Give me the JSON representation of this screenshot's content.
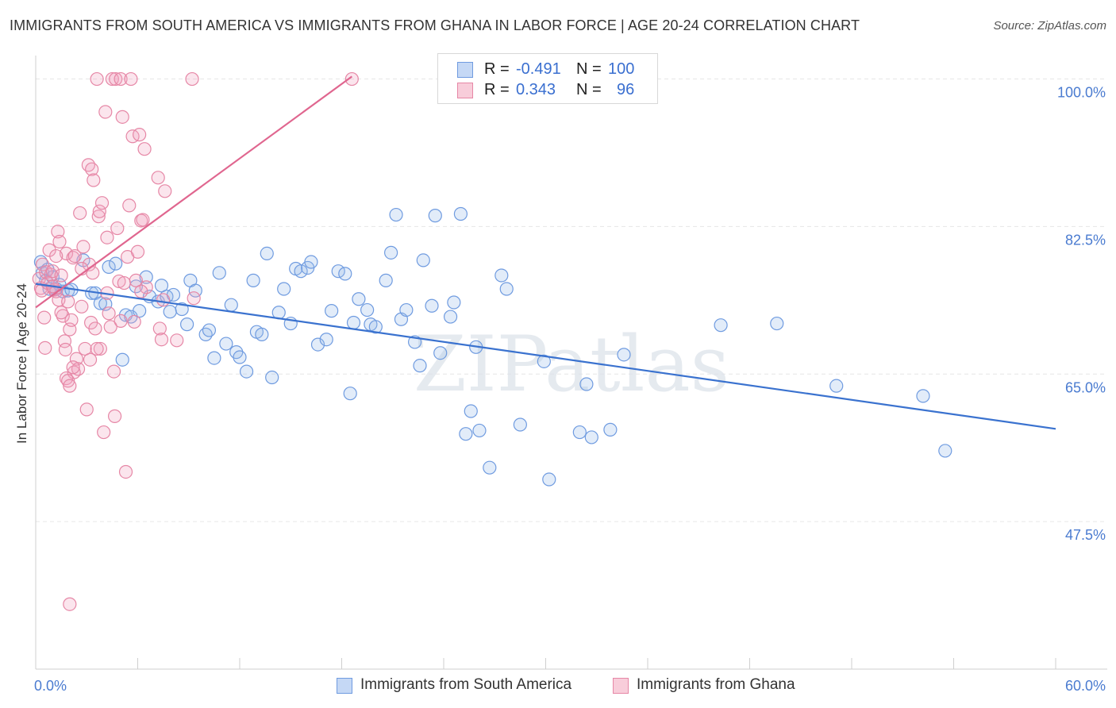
{
  "title": "IMMIGRANTS FROM SOUTH AMERICA VS IMMIGRANTS FROM GHANA IN LABOR FORCE | AGE 20-24 CORRELATION CHART",
  "source": "Source: ZipAtlas.com",
  "watermark": "ZIPatlas",
  "legend": {
    "r_label": "R =",
    "n_label": "N =",
    "rows": [
      {
        "r": "-0.491",
        "n": "100",
        "color": "#6f9be0"
      },
      {
        "r": "0.343",
        "n": "96",
        "color": "#e687a6"
      }
    ]
  },
  "bottom_legend": [
    "Immigrants from South America",
    "Immigrants from Ghana"
  ],
  "chart_data": {
    "type": "scatter",
    "title": "IMMIGRANTS FROM SOUTH AMERICA VS IMMIGRANTS FROM GHANA IN LABOR FORCE | AGE 20-24 CORRELATION CHART",
    "xlabel": "",
    "ylabel": "In Labor Force | Age 20-24",
    "xlim": [
      0,
      60
    ],
    "ylim": [
      30,
      102.5
    ],
    "x_tick_labels": [
      "0.0%",
      "60.0%"
    ],
    "y_ticks": [
      47.5,
      65.0,
      82.5,
      100.0
    ],
    "y_tick_labels": [
      "47.5%",
      "65.0%",
      "82.5%",
      "100.0%"
    ],
    "grid": true,
    "legend_position": "top-center",
    "series": [
      {
        "name": "Immigrants from South America",
        "color": "#6f9be0",
        "trend": {
          "x": [
            0,
            60
          ],
          "y": [
            75.7,
            58.5
          ]
        },
        "points": [
          [
            0.3,
            78.3
          ],
          [
            0.4,
            77.0
          ],
          [
            0.6,
            76.1
          ],
          [
            0.7,
            77.4
          ],
          [
            0.8,
            75.1
          ],
          [
            1.0,
            76.5
          ],
          [
            1.2,
            75.1
          ],
          [
            1.4,
            75.6
          ],
          [
            1.6,
            74.8
          ],
          [
            1.9,
            74.9
          ],
          [
            2.1,
            75.0
          ],
          [
            2.8,
            78.5
          ],
          [
            3.3,
            74.6
          ],
          [
            3.5,
            74.6
          ],
          [
            3.8,
            73.4
          ],
          [
            4.1,
            73.3
          ],
          [
            4.3,
            77.7
          ],
          [
            4.7,
            78.1
          ],
          [
            5.1,
            66.7
          ],
          [
            5.3,
            72.0
          ],
          [
            5.6,
            71.8
          ],
          [
            5.9,
            75.4
          ],
          [
            6.1,
            72.5
          ],
          [
            6.5,
            76.5
          ],
          [
            6.7,
            74.2
          ],
          [
            7.2,
            73.6
          ],
          [
            7.4,
            75.5
          ],
          [
            7.7,
            74.2
          ],
          [
            7.9,
            72.4
          ],
          [
            8.1,
            74.4
          ],
          [
            8.6,
            72.7
          ],
          [
            8.9,
            70.9
          ],
          [
            9.1,
            76.1
          ],
          [
            9.4,
            74.9
          ],
          [
            10.0,
            69.7
          ],
          [
            10.2,
            70.2
          ],
          [
            10.5,
            66.9
          ],
          [
            10.8,
            77.0
          ],
          [
            11.2,
            68.6
          ],
          [
            11.5,
            73.2
          ],
          [
            11.8,
            67.6
          ],
          [
            12.0,
            67.0
          ],
          [
            12.4,
            65.3
          ],
          [
            12.8,
            76.1
          ],
          [
            13.0,
            70.0
          ],
          [
            13.3,
            69.7
          ],
          [
            13.6,
            79.3
          ],
          [
            13.9,
            64.6
          ],
          [
            14.3,
            72.3
          ],
          [
            14.6,
            75.1
          ],
          [
            15.0,
            71.0
          ],
          [
            15.3,
            77.5
          ],
          [
            15.6,
            77.2
          ],
          [
            16.0,
            77.6
          ],
          [
            16.2,
            78.3
          ],
          [
            16.6,
            68.5
          ],
          [
            17.1,
            69.1
          ],
          [
            17.4,
            72.5
          ],
          [
            17.8,
            77.2
          ],
          [
            18.2,
            76.9
          ],
          [
            18.5,
            62.7
          ],
          [
            18.7,
            71.1
          ],
          [
            19.0,
            73.9
          ],
          [
            19.5,
            72.6
          ],
          [
            19.7,
            70.9
          ],
          [
            20.0,
            70.6
          ],
          [
            20.6,
            76.1
          ],
          [
            20.9,
            79.4
          ],
          [
            21.2,
            83.9
          ],
          [
            21.5,
            71.5
          ],
          [
            21.8,
            72.6
          ],
          [
            22.3,
            68.8
          ],
          [
            22.6,
            66.0
          ],
          [
            22.8,
            78.5
          ],
          [
            23.3,
            73.1
          ],
          [
            23.5,
            83.8
          ],
          [
            23.8,
            67.5
          ],
          [
            24.4,
            71.8
          ],
          [
            24.6,
            73.5
          ],
          [
            25.0,
            84.0
          ],
          [
            25.3,
            57.9
          ],
          [
            25.6,
            60.6
          ],
          [
            25.9,
            68.2
          ],
          [
            26.1,
            58.3
          ],
          [
            26.7,
            53.9
          ],
          [
            27.4,
            76.7
          ],
          [
            27.7,
            75.1
          ],
          [
            28.5,
            59.0
          ],
          [
            29.9,
            66.5
          ],
          [
            30.2,
            52.5
          ],
          [
            32.0,
            58.1
          ],
          [
            32.4,
            63.8
          ],
          [
            32.7,
            57.5
          ],
          [
            33.8,
            58.4
          ],
          [
            34.6,
            67.3
          ],
          [
            40.3,
            70.8
          ],
          [
            43.6,
            71.0
          ],
          [
            47.1,
            63.6
          ],
          [
            52.2,
            62.4
          ],
          [
            53.5,
            55.9
          ]
        ]
      },
      {
        "name": "Immigrants from Ghana",
        "color": "#e687a6",
        "trend": {
          "x": [
            0,
            18.6
          ],
          "y": [
            72.9,
            100.3
          ]
        },
        "points": [
          [
            0.2,
            76.3
          ],
          [
            0.3,
            75.2
          ],
          [
            0.35,
            74.9
          ],
          [
            0.4,
            78.0
          ],
          [
            0.5,
            71.7
          ],
          [
            0.55,
            68.1
          ],
          [
            0.6,
            77.1
          ],
          [
            0.7,
            75.8
          ],
          [
            0.8,
            79.7
          ],
          [
            0.9,
            76.8
          ],
          [
            1.0,
            77.2
          ],
          [
            1.1,
            75.0
          ],
          [
            1.2,
            74.8
          ],
          [
            1.3,
            81.9
          ],
          [
            1.35,
            73.8
          ],
          [
            1.4,
            80.7
          ],
          [
            1.5,
            76.7
          ],
          [
            1.6,
            71.9
          ],
          [
            1.7,
            68.9
          ],
          [
            1.75,
            67.9
          ],
          [
            1.8,
            79.3
          ],
          [
            1.9,
            73.6
          ],
          [
            2.0,
            70.3
          ],
          [
            2.1,
            71.4
          ],
          [
            2.2,
            78.8
          ],
          [
            2.25,
            65.2
          ],
          [
            2.3,
            79.0
          ],
          [
            2.4,
            66.8
          ],
          [
            2.5,
            65.6
          ],
          [
            2.6,
            84.1
          ],
          [
            2.7,
            73.0
          ],
          [
            2.8,
            80.1
          ],
          [
            2.9,
            68.0
          ],
          [
            3.0,
            60.8
          ],
          [
            3.1,
            89.8
          ],
          [
            3.15,
            78.0
          ],
          [
            3.2,
            66.7
          ],
          [
            3.25,
            71.1
          ],
          [
            3.3,
            89.3
          ],
          [
            3.35,
            77.0
          ],
          [
            3.4,
            88.0
          ],
          [
            3.5,
            70.4
          ],
          [
            3.6,
            100.0
          ],
          [
            3.7,
            83.7
          ],
          [
            3.75,
            84.3
          ],
          [
            3.8,
            68.0
          ],
          [
            3.9,
            85.3
          ],
          [
            4.0,
            58.1
          ],
          [
            4.1,
            96.1
          ],
          [
            4.2,
            81.2
          ],
          [
            4.3,
            72.2
          ],
          [
            4.4,
            70.6
          ],
          [
            4.5,
            100.0
          ],
          [
            4.6,
            65.3
          ],
          [
            4.65,
            60.0
          ],
          [
            4.7,
            100.0
          ],
          [
            4.8,
            82.3
          ],
          [
            4.9,
            76.0
          ],
          [
            5.0,
            100.0
          ],
          [
            5.1,
            95.5
          ],
          [
            5.2,
            75.8
          ],
          [
            5.3,
            53.4
          ],
          [
            5.4,
            78.9
          ],
          [
            5.5,
            85.0
          ],
          [
            5.6,
            100.0
          ],
          [
            5.7,
            93.2
          ],
          [
            5.8,
            71.2
          ],
          [
            5.9,
            76.1
          ],
          [
            6.0,
            79.5
          ],
          [
            6.1,
            93.4
          ],
          [
            6.2,
            83.2
          ],
          [
            6.3,
            83.3
          ],
          [
            6.4,
            91.7
          ],
          [
            6.5,
            75.3
          ],
          [
            7.2,
            88.3
          ],
          [
            7.3,
            70.4
          ],
          [
            7.4,
            69.1
          ],
          [
            7.5,
            73.8
          ],
          [
            7.6,
            86.7
          ],
          [
            8.3,
            69.0
          ],
          [
            9.2,
            100.0
          ],
          [
            9.3,
            74.0
          ],
          [
            18.6,
            100.0
          ],
          [
            2.0,
            37.7
          ],
          [
            1.8,
            64.5
          ],
          [
            1.9,
            64.2
          ],
          [
            2.2,
            65.8
          ],
          [
            2.0,
            63.6
          ],
          [
            1.0,
            75.4
          ],
          [
            1.5,
            72.3
          ],
          [
            2.7,
            77.5
          ],
          [
            3.6,
            68.0
          ],
          [
            4.2,
            74.6
          ],
          [
            5.0,
            71.3
          ],
          [
            6.2,
            74.8
          ],
          [
            1.2,
            79.0
          ]
        ]
      }
    ]
  }
}
